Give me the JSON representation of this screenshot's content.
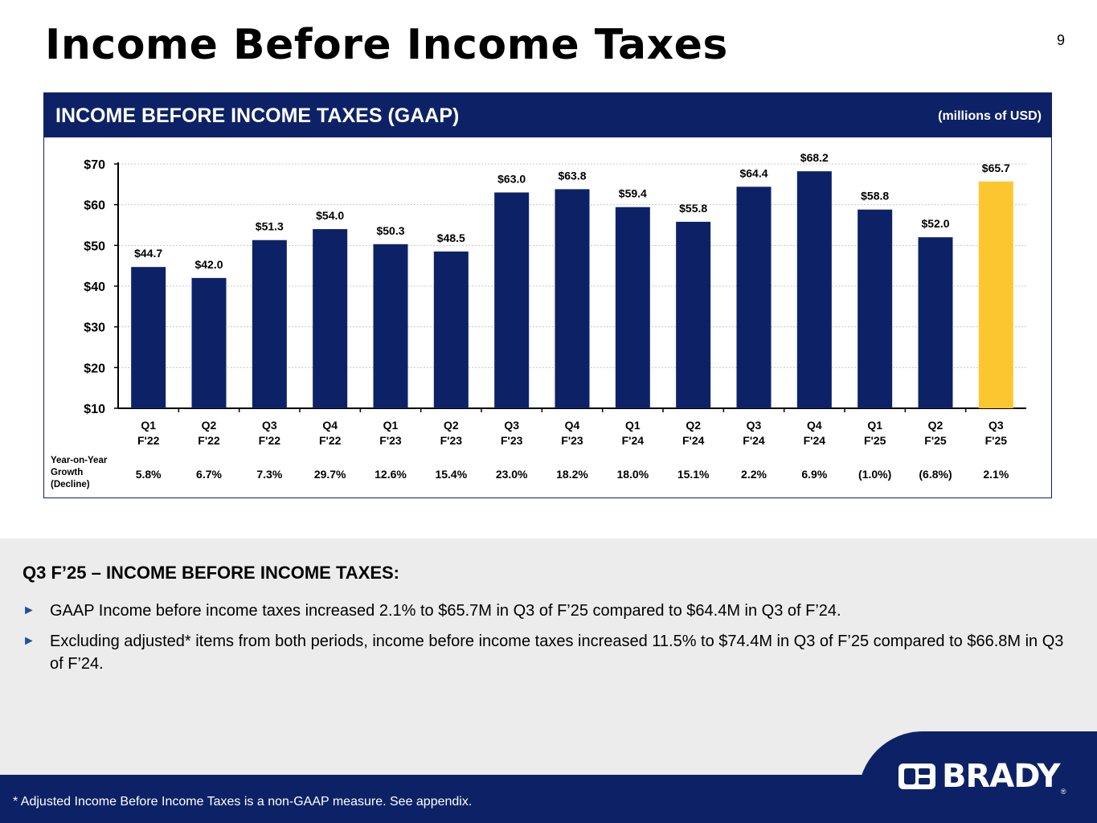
{
  "page": {
    "title": "Income Before Income Taxes",
    "number": "9"
  },
  "panel": {
    "title": "INCOME BEFORE INCOME TAXES (GAAP)",
    "units": "(millions of USD)"
  },
  "growth_label": [
    "Year-on-Year",
    "Growth",
    "(Decline)"
  ],
  "chart_data": {
    "type": "bar",
    "title": "INCOME BEFORE INCOME TAXES (GAAP)",
    "units": "(millions of USD)",
    "categories": [
      [
        "Q1",
        "F'22"
      ],
      [
        "Q2",
        "F'22"
      ],
      [
        "Q3",
        "F'22"
      ],
      [
        "Q4",
        "F'22"
      ],
      [
        "Q1",
        "F'23"
      ],
      [
        "Q2",
        "F'23"
      ],
      [
        "Q3",
        "F'23"
      ],
      [
        "Q4",
        "F'23"
      ],
      [
        "Q1",
        "F'24"
      ],
      [
        "Q2",
        "F'24"
      ],
      [
        "Q3",
        "F'24"
      ],
      [
        "Q4",
        "F'24"
      ],
      [
        "Q1",
        "F'25"
      ],
      [
        "Q2",
        "F'25"
      ],
      [
        "Q3",
        "F'25"
      ]
    ],
    "values": [
      44.7,
      42.0,
      51.3,
      54.0,
      50.3,
      48.5,
      63.0,
      63.8,
      59.4,
      55.8,
      64.4,
      68.2,
      58.8,
      52.0,
      65.7
    ],
    "value_labels": [
      "$44.7",
      "$42.0",
      "$51.3",
      "$54.0",
      "$50.3",
      "$48.5",
      "$63.0",
      "$63.8",
      "$59.4",
      "$55.8",
      "$64.4",
      "$68.2",
      "$58.8",
      "$52.0",
      "$65.7"
    ],
    "growth": [
      "5.8%",
      "6.7%",
      "7.3%",
      "29.7%",
      "12.6%",
      "15.4%",
      "23.0%",
      "18.2%",
      "18.0%",
      "15.1%",
      "2.2%",
      "6.9%",
      "(1.0%)",
      "(6.8%)",
      "2.1%"
    ],
    "ylim": [
      10,
      70
    ],
    "yticks": [
      10,
      20,
      30,
      40,
      50,
      60,
      70
    ],
    "ytick_labels": [
      "$10",
      "$20",
      "$30",
      "$40",
      "$50",
      "$60",
      "$70"
    ],
    "grid": true,
    "colors": {
      "bar": "#0d2266",
      "highlight": "#fcc631"
    },
    "highlight_index": 14
  },
  "summary": {
    "heading": "Q3 F’25 – INCOME BEFORE INCOME TAXES:",
    "bullets": [
      "GAAP Income before income taxes increased 2.1% to $65.7M in Q3 of F’25 compared to $64.4M in Q3 of F’24.",
      "Excluding adjusted* items from both periods, income before income taxes increased 11.5% to $74.4M in Q3 of F’25 compared to $66.8M in Q3 of F’24."
    ],
    "bullet_icon": "triangle-right-icon"
  },
  "footer": {
    "note": "* Adjusted Income Before Income Taxes is a non-GAAP measure.  See appendix."
  },
  "brand": {
    "name": "BRADY",
    "reg": "®"
  }
}
